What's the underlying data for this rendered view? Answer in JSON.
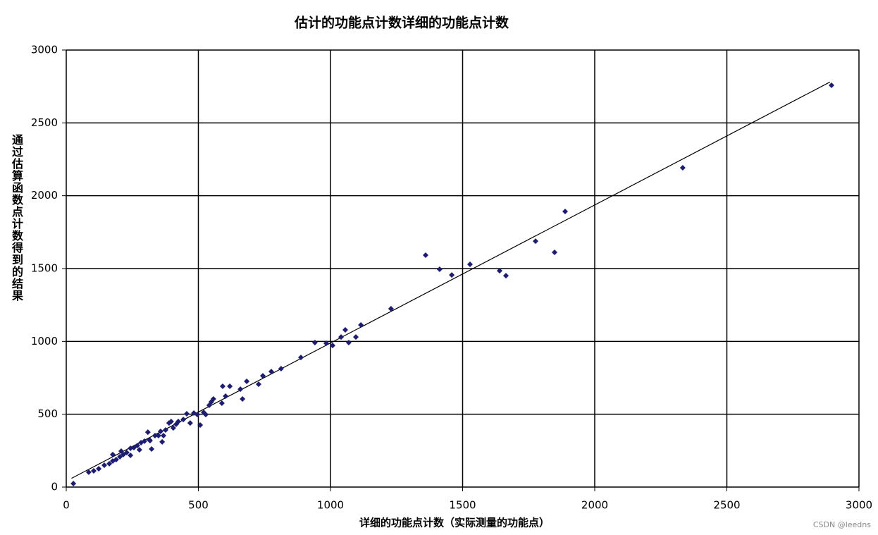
{
  "chart_data": {
    "type": "scatter",
    "title": "估计的功能点计数详细的功能点计数",
    "x_label": "详细的功能点计数（实际测量的功能点）",
    "y_label": "通过估算函数点计数得到的结果",
    "color": "#1c1c70",
    "x": [
      27,
      2333,
      2896,
      1888,
      1776,
      1848,
      1360,
      1413,
      1459,
      1528,
      1640,
      1664,
      1229,
      1115,
      1096,
      1069,
      1056,
      1040,
      1008,
      984,
      941,
      888,
      813,
      776,
      744,
      728,
      683,
      667,
      659,
      619,
      592,
      603,
      589,
      549,
      541,
      520,
      496,
      483,
      507,
      469,
      443,
      416,
      405,
      389,
      376,
      357,
      336,
      317,
      309,
      296,
      283,
      269,
      256,
      243,
      229,
      216,
      203,
      189,
      176,
      163,
      144,
      123,
      104,
      85,
      176,
      208,
      243,
      277,
      315,
      349,
      368,
      397,
      424,
      456,
      528,
      557,
      363,
      323
    ],
    "values": [
      24,
      2192,
      2758,
      1892,
      1688,
      1611,
      1592,
      1495,
      1456,
      1529,
      1485,
      1451,
      1224,
      1113,
      1030,
      992,
      1079,
      1030,
      972,
      987,
      992,
      890,
      813,
      793,
      764,
      706,
      726,
      605,
      672,
      692,
      692,
      624,
      576,
      585,
      561,
      513,
      498,
      508,
      426,
      440,
      464,
      431,
      406,
      440,
      392,
      382,
      353,
      319,
      377,
      315,
      305,
      285,
      271,
      266,
      237,
      223,
      208,
      189,
      179,
      160,
      150,
      126,
      111,
      102,
      223,
      247,
      218,
      256,
      324,
      353,
      353,
      450,
      450,
      503,
      498,
      605,
      310,
      261
    ],
    "trendline": {
      "x": [
        20,
        2890
      ],
      "values": [
        60,
        2780
      ],
      "color": "#000000"
    },
    "xlim": [
      0,
      3000
    ],
    "ylim": [
      0,
      3000
    ],
    "xticks": [
      0,
      500,
      1000,
      1500,
      2000,
      2500,
      3000
    ],
    "yticks": [
      0,
      500,
      1000,
      1500,
      2000,
      2500,
      3000
    ],
    "grid": true
  },
  "watermark": "CSDN @leedns"
}
